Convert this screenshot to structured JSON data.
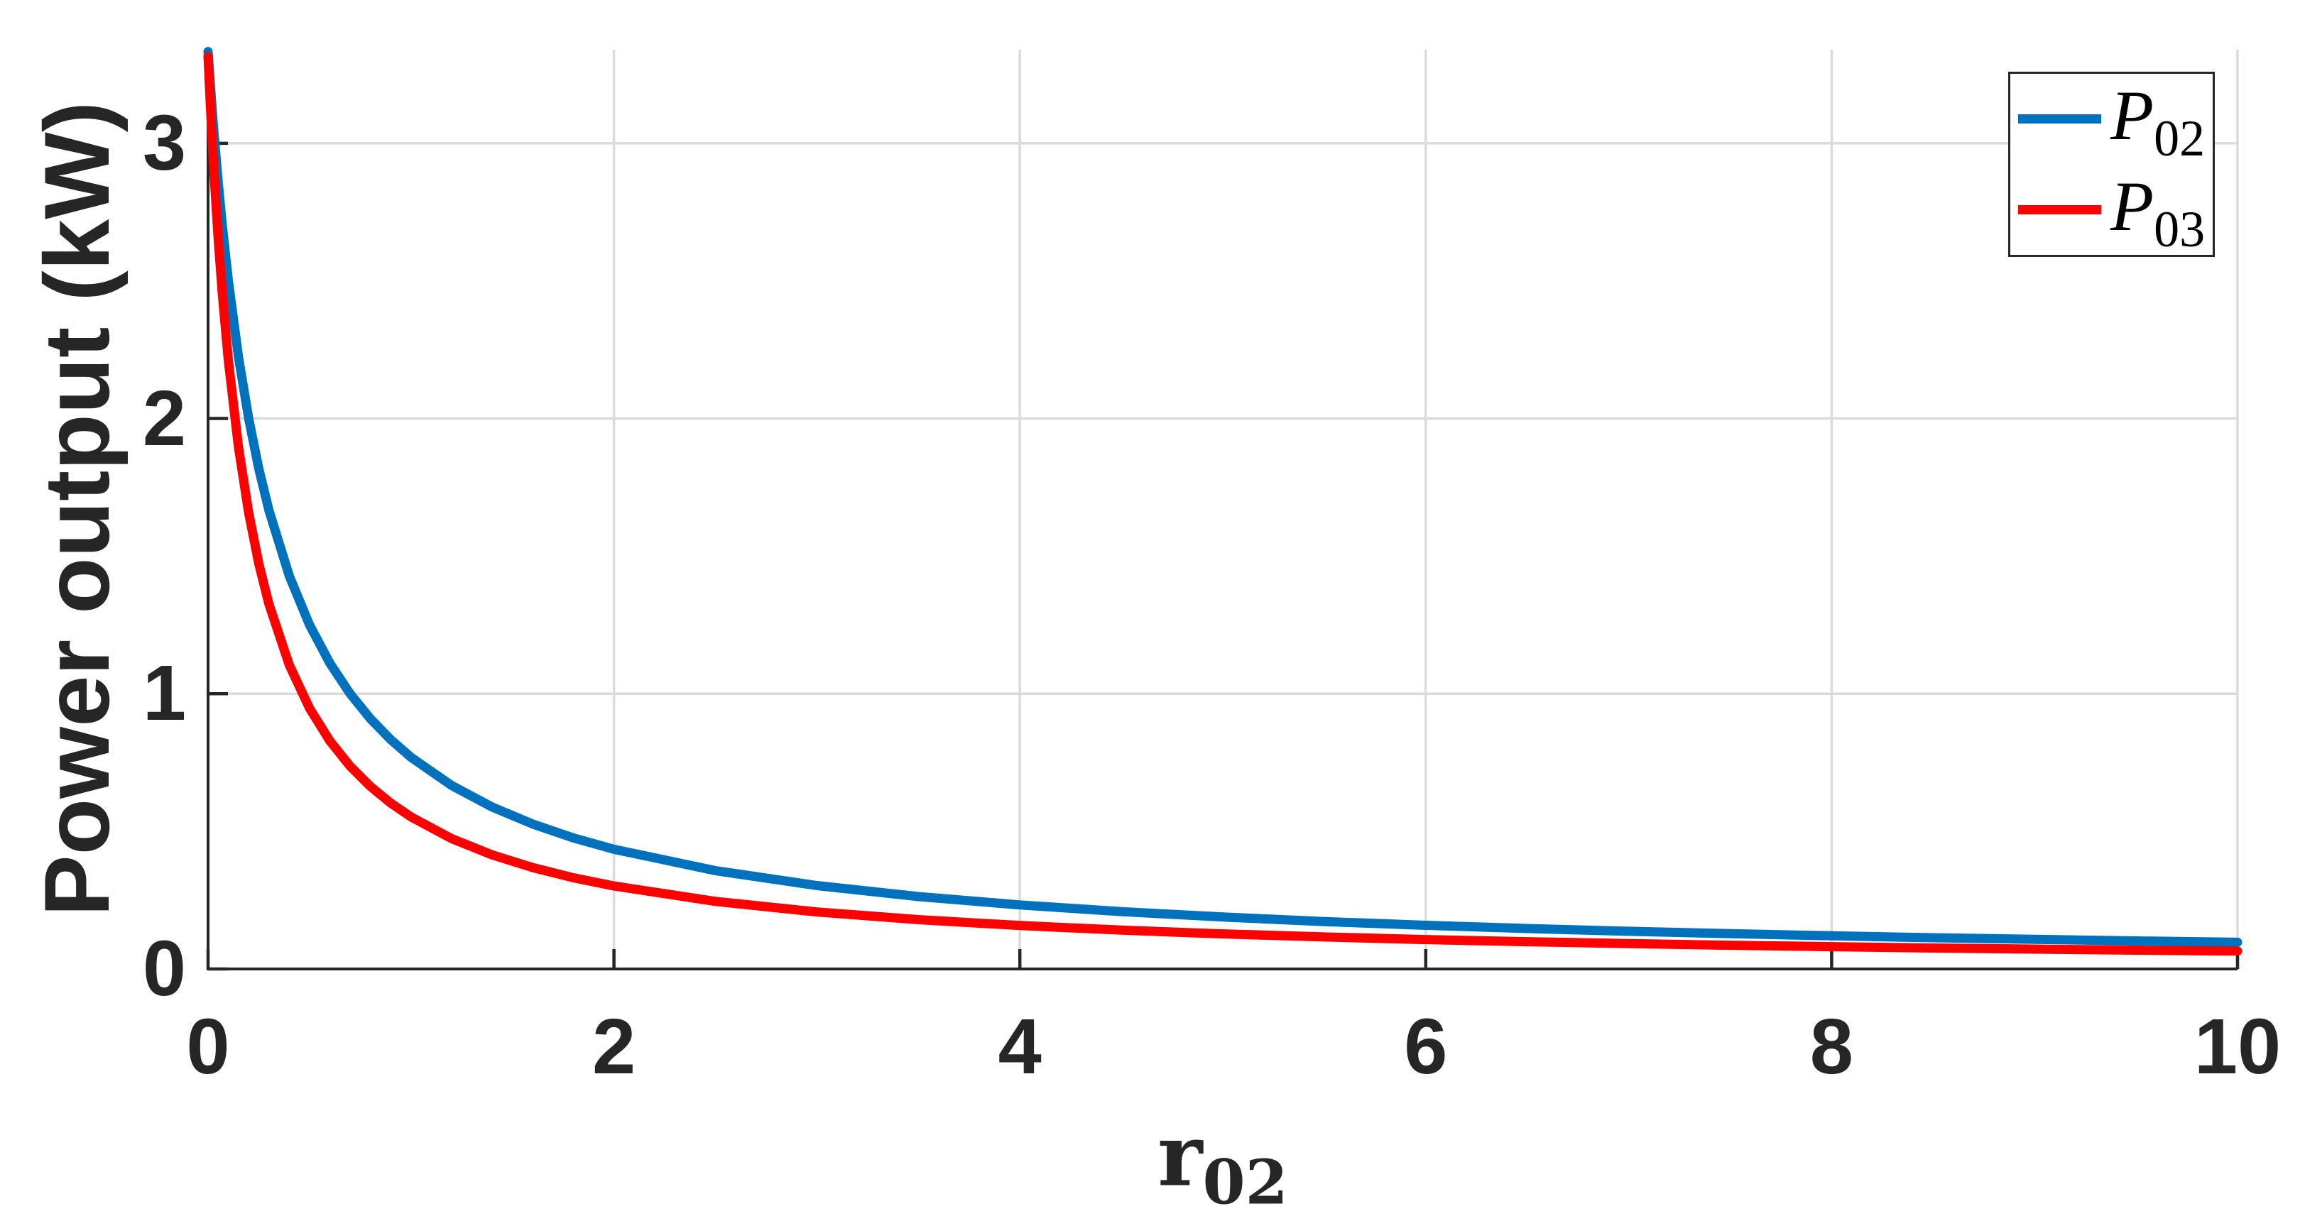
{
  "figure": {
    "background": "#FFFFFF"
  },
  "chart_data": {
    "type": "line",
    "xlabel": {
      "symbol": "r",
      "subscript": "02"
    },
    "ylabel": "Power output (kW)",
    "xlim": [
      0,
      10
    ],
    "ylim": [
      0,
      3.34
    ],
    "xticks": [
      0,
      2,
      4,
      6,
      8,
      10
    ],
    "xticklabels": [
      "0",
      "2",
      "4",
      "6",
      "8",
      "10"
    ],
    "yticks": [
      0,
      1,
      2,
      3
    ],
    "yticklabels": [
      "0",
      "1",
      "2",
      "3"
    ],
    "grid": true,
    "colors": {
      "grid": "#DBDBDB",
      "axis": "#262626",
      "text": "#262626"
    },
    "legend": {
      "position": "top-right",
      "items": [
        {
          "symbol": "P",
          "subscript": "02",
          "color": "#0072BD"
        },
        {
          "symbol": "P",
          "subscript": "03",
          "color": "#FF0000"
        }
      ]
    },
    "x": [
      0,
      0.01,
      0.02,
      0.03,
      0.05,
      0.07,
      0.1,
      0.15,
      0.2,
      0.25,
      0.3,
      0.4,
      0.5,
      0.6,
      0.7,
      0.8,
      0.9,
      1.0,
      1.2,
      1.4,
      1.6,
      1.8,
      2.0,
      2.5,
      3.0,
      3.5,
      4.0,
      4.5,
      5.0,
      5.5,
      6.0,
      6.5,
      7.0,
      7.5,
      8.0,
      8.5,
      9.0,
      9.5,
      10
    ],
    "series": [
      {
        "name": "P02",
        "color": "#0072BD",
        "line_width": 13,
        "values": [
          3.3333,
          3.2258,
          3.125,
          3.0303,
          2.8571,
          2.7027,
          2.5,
          2.2222,
          2.0,
          1.8182,
          1.6667,
          1.4286,
          1.25,
          1.1111,
          1.0,
          0.9091,
          0.8333,
          0.7692,
          0.6667,
          0.5882,
          0.5263,
          0.4762,
          0.4348,
          0.3571,
          0.303,
          0.2632,
          0.2326,
          0.2083,
          0.1887,
          0.1724,
          0.1587,
          0.1471,
          0.137,
          0.1282,
          0.1205,
          0.1136,
          0.1075,
          0.102,
          0.0971
        ]
      },
      {
        "name": "P03",
        "color": "#FF0000",
        "line_width": 13,
        "values": [
          3.315,
          3.1571,
          3.0136,
          2.8826,
          2.652,
          2.4556,
          2.21,
          1.8943,
          1.6575,
          1.4733,
          1.326,
          1.105,
          0.9471,
          0.8288,
          0.7367,
          0.663,
          0.6027,
          0.5525,
          0.4736,
          0.4144,
          0.3683,
          0.3315,
          0.3014,
          0.2456,
          0.2072,
          0.1792,
          0.1579,
          0.1411,
          0.1275,
          0.1163,
          0.1069,
          0.099,
          0.0921,
          0.0861,
          0.0809,
          0.0762,
          0.0721,
          0.0684,
          0.065
        ]
      }
    ]
  }
}
